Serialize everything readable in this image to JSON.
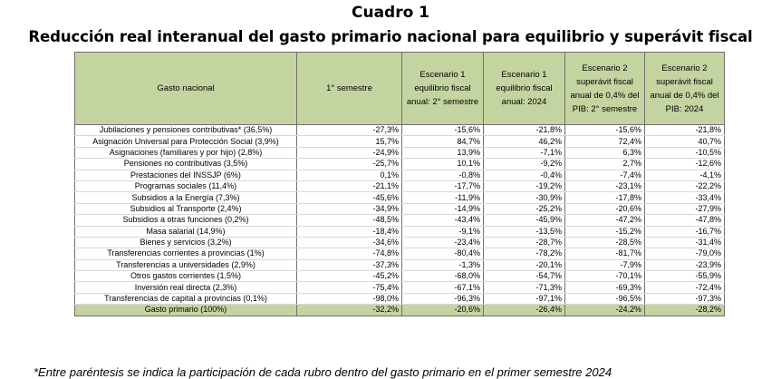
{
  "title": "Cuadro 1",
  "subtitle": "Reducción real interanual del gasto primario nacional para equilibrio y superávit fiscal",
  "table": {
    "headers": [
      "Gasto nacional",
      "1° semestre",
      "Escenario 1 equilibrio fiscal anual: 2° semestre",
      "Escenario 1 equilibrio fiscal anual: 2024",
      "Escenario 2 superávit fiscal anual de 0,4% del PIB: 2° semestre",
      "Escenario 2 superávit fiscal anual de 0,4% del PIB: 2024"
    ],
    "rows": [
      [
        "Jubilaciones y pensiones contributivas* (36,5%)",
        "-27,3%",
        "-15,6%",
        "-21,8%",
        "-15,6%",
        "-21,8%"
      ],
      [
        "Asignación Universal para Protección Social (3,9%)",
        "15,7%",
        "84,7%",
        "46,2%",
        "72,4%",
        "40,7%"
      ],
      [
        "Asignaciones (familiares y por hijo) (2,8%)",
        "-24,9%",
        "13,9%",
        "-7,1%",
        "6,3%",
        "-10,5%"
      ],
      [
        "Pensiones no contributivas (3,5%)",
        "-25,7%",
        "10,1%",
        "-9,2%",
        "2,7%",
        "-12,6%"
      ],
      [
        "Prestaciones del INSSJP (6%)",
        "0,1%",
        "-0,8%",
        "-0,4%",
        "-7,4%",
        "-4,1%"
      ],
      [
        "Programas sociales (11,4%)",
        "-21,1%",
        "-17,7%",
        "-19,2%",
        "-23,1%",
        "-22,2%"
      ],
      [
        "Subsidios a la Energía (7,3%)",
        "-45,6%",
        "-11,9%",
        "-30,9%",
        "-17,8%",
        "-33,4%"
      ],
      [
        "Subsidios al Transporte (2,4%)",
        "-34,9%",
        "-14,9%",
        "-25,2%",
        "-20,6%",
        "-27,9%"
      ],
      [
        "Subsidios a otras funciones (0,2%)",
        "-48,5%",
        "-43,4%",
        "-45,9%",
        "-47,2%",
        "-47,8%"
      ],
      [
        "Masa salarial (14,9%)",
        "-18,4%",
        "-9,1%",
        "-13,5%",
        "-15,2%",
        "-16,7%"
      ],
      [
        "Bienes y servicios (3,2%)",
        "-34,6%",
        "-23,4%",
        "-28,7%",
        "-28,5%",
        "-31,4%"
      ],
      [
        "Transferencias corrientes a provincias (1%)",
        "-74,8%",
        "-80,4%",
        "-78,2%",
        "-81,7%",
        "-79,0%"
      ],
      [
        "Transferencias a universidades (2,9%)",
        "-37,3%",
        "-1,3%",
        "-20,1%",
        "-7,9%",
        "-23,9%"
      ],
      [
        "Otros gastos corrientes (1,5%)",
        "-45,2%",
        "-68,0%",
        "-54,7%",
        "-70,1%",
        "-55,9%"
      ],
      [
        "Inversión real directa (2,3%)",
        "-75,4%",
        "-67,1%",
        "-71,3%",
        "-69,3%",
        "-72,4%"
      ],
      [
        "Transferencias de capital a provincias (0,1%)",
        "-98,0%",
        "-96,3%",
        "-97,1%",
        "-96,5%",
        "-97,3%"
      ],
      [
        "Gasto primario (100%)",
        "-32,2%",
        "-20,6%",
        "-26,4%",
        "-24,2%",
        "-28,2%"
      ]
    ]
  },
  "footnote": "*Entre paréntesis se indica la participación de cada rubro dentro del gasto primario en el primer semestre 2024",
  "colors": {
    "header_bg": "#c4d4a0",
    "total_bg": "#c4d4a0"
  }
}
